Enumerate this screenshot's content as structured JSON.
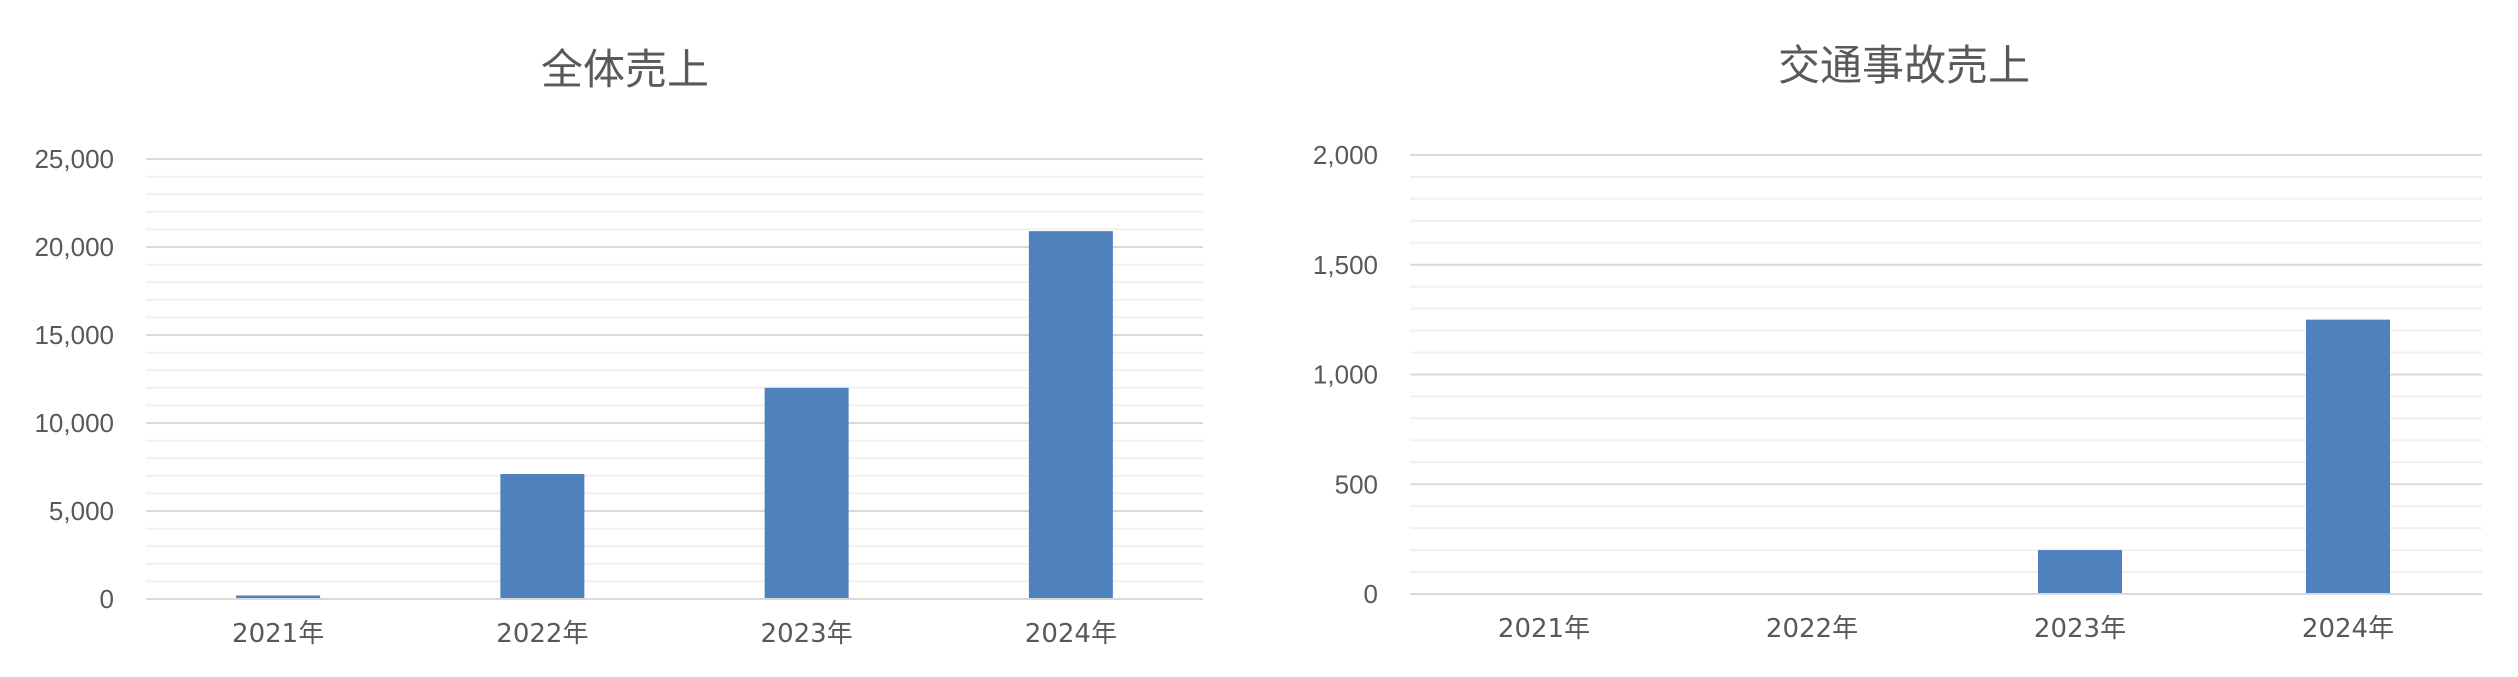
{
  "chart_data": [
    {
      "type": "bar",
      "title": "全体売上",
      "categories": [
        "2021年",
        "2022年",
        "2023年",
        "2024年"
      ],
      "values": [
        200,
        7100,
        12000,
        20900
      ],
      "ylim": [
        0,
        25000
      ],
      "yticks": [
        0,
        5000,
        10000,
        15000,
        20000,
        25000
      ],
      "ytick_labels": [
        "0",
        "5,000",
        "10,000",
        "15,000",
        "20,000",
        "25,000"
      ],
      "minor_step": 1000,
      "grid": true,
      "xlabel": "",
      "ylabel": "",
      "bar_color": "#4F81BD"
    },
    {
      "type": "bar",
      "title": "交通事故売上",
      "categories": [
        "2021年",
        "2022年",
        "2023年",
        "2024年"
      ],
      "values": [
        0,
        0,
        200,
        1250
      ],
      "ylim": [
        0,
        2000
      ],
      "yticks": [
        0,
        500,
        1000,
        1500,
        2000
      ],
      "ytick_labels": [
        "0",
        "500",
        "1,000",
        "1,500",
        "2,000"
      ],
      "minor_step": 100,
      "grid": true,
      "xlabel": "",
      "ylabel": "",
      "bar_color": "#4F81BD"
    }
  ]
}
